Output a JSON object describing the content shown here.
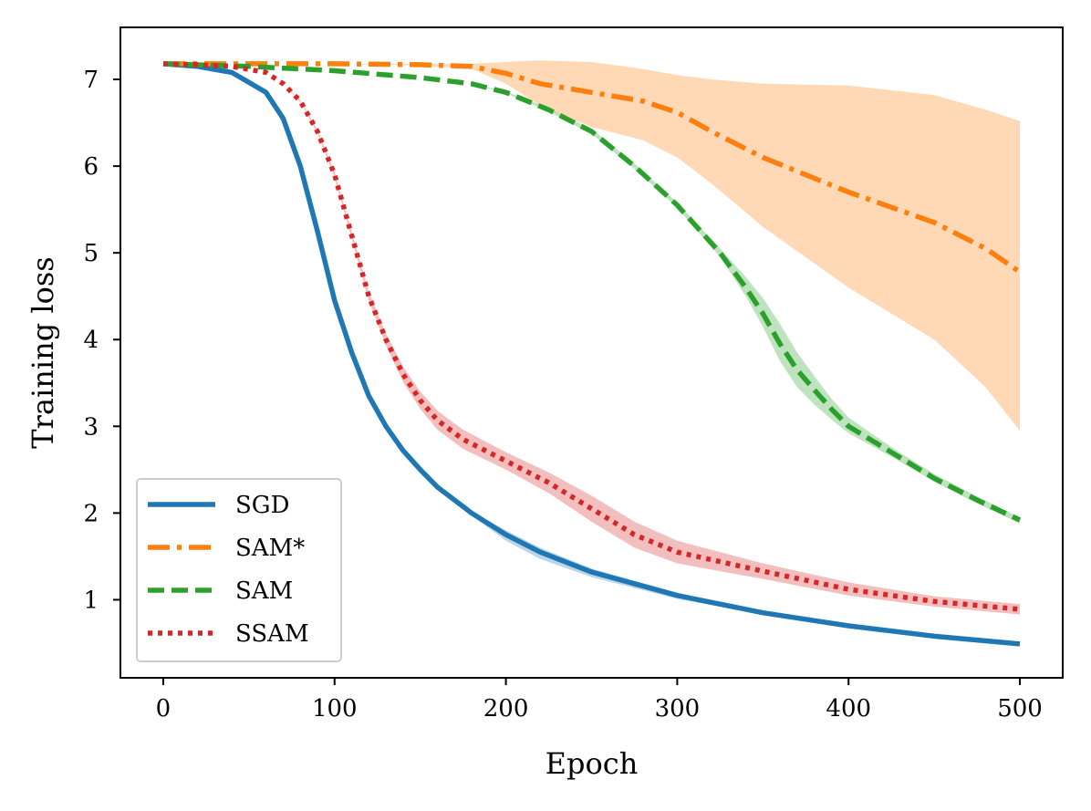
{
  "chart_data": {
    "type": "line",
    "title": "",
    "xlabel": "Epoch",
    "ylabel": "Training loss",
    "xlim": [
      -25,
      525
    ],
    "ylim": [
      0.1,
      7.6
    ],
    "xticks": [
      0,
      100,
      200,
      300,
      400,
      500
    ],
    "yticks": [
      1,
      2,
      3,
      4,
      5,
      6,
      7
    ],
    "grid": false,
    "legend_placement": "lower-left",
    "series": [
      {
        "name": "SGD",
        "color": "#1f77b4",
        "style": "solid",
        "x": [
          0,
          20,
          40,
          60,
          70,
          80,
          90,
          100,
          110,
          120,
          130,
          140,
          150,
          160,
          180,
          200,
          220,
          250,
          300,
          350,
          400,
          450,
          500
        ],
        "y": [
          7.18,
          7.15,
          7.08,
          6.85,
          6.55,
          6.0,
          5.25,
          4.45,
          3.85,
          3.35,
          3.0,
          2.72,
          2.5,
          2.3,
          2.0,
          1.75,
          1.55,
          1.32,
          1.05,
          0.85,
          0.7,
          0.58,
          0.49
        ],
        "band_upper": [
          7.18,
          7.15,
          7.08,
          6.85,
          6.55,
          6.0,
          5.25,
          4.45,
          3.85,
          3.35,
          3.0,
          2.72,
          2.5,
          2.3,
          2.02,
          1.8,
          1.6,
          1.36,
          1.08,
          0.87,
          0.71,
          0.59,
          0.5
        ],
        "band_lower": [
          7.18,
          7.15,
          7.08,
          6.85,
          6.55,
          6.0,
          5.25,
          4.45,
          3.85,
          3.35,
          3.0,
          2.72,
          2.5,
          2.3,
          1.97,
          1.68,
          1.47,
          1.26,
          1.01,
          0.83,
          0.69,
          0.57,
          0.48
        ]
      },
      {
        "name": "SAM*",
        "color": "#ff7f0e",
        "style": "dashdot",
        "x": [
          0,
          50,
          100,
          150,
          180,
          200,
          220,
          250,
          280,
          300,
          320,
          350,
          400,
          450,
          480,
          500
        ],
        "y": [
          7.18,
          7.18,
          7.18,
          7.17,
          7.15,
          7.07,
          6.95,
          6.85,
          6.75,
          6.62,
          6.4,
          6.1,
          5.7,
          5.35,
          5.05,
          4.78
        ],
        "band_upper": [
          7.18,
          7.18,
          7.18,
          7.18,
          7.18,
          7.2,
          7.22,
          7.2,
          7.12,
          7.05,
          7.0,
          6.95,
          6.93,
          6.82,
          6.65,
          6.52
        ],
        "band_lower": [
          7.18,
          7.18,
          7.18,
          7.16,
          7.12,
          6.95,
          6.7,
          6.45,
          6.3,
          6.1,
          5.8,
          5.3,
          4.6,
          4.0,
          3.45,
          2.95
        ]
      },
      {
        "name": "SAM",
        "color": "#2ca02c",
        "style": "dashed",
        "x": [
          0,
          50,
          100,
          150,
          180,
          200,
          225,
          250,
          275,
          300,
          325,
          340,
          350,
          360,
          370,
          380,
          390,
          400,
          425,
          450,
          475,
          500
        ],
        "y": [
          7.18,
          7.15,
          7.1,
          7.02,
          6.95,
          6.85,
          6.65,
          6.4,
          6.0,
          5.55,
          5.0,
          4.6,
          4.3,
          3.95,
          3.65,
          3.42,
          3.2,
          3.0,
          2.7,
          2.4,
          2.15,
          1.92
        ],
        "band_upper": [
          7.18,
          7.15,
          7.1,
          7.02,
          6.95,
          6.86,
          6.67,
          6.43,
          6.03,
          5.58,
          5.05,
          4.72,
          4.48,
          4.18,
          3.85,
          3.58,
          3.32,
          3.1,
          2.76,
          2.45,
          2.19,
          1.95
        ],
        "band_lower": [
          7.18,
          7.15,
          7.1,
          7.02,
          6.95,
          6.84,
          6.63,
          6.37,
          5.97,
          5.52,
          4.95,
          4.5,
          4.15,
          3.75,
          3.45,
          3.25,
          3.08,
          2.92,
          2.65,
          2.36,
          2.11,
          1.88
        ]
      },
      {
        "name": "SSAM",
        "color": "#d62728",
        "style": "dotted",
        "x": [
          0,
          20,
          40,
          60,
          70,
          80,
          90,
          100,
          110,
          120,
          130,
          140,
          150,
          160,
          175,
          200,
          225,
          250,
          275,
          300,
          350,
          400,
          450,
          500
        ],
        "y": [
          7.18,
          7.17,
          7.15,
          7.08,
          6.95,
          6.75,
          6.4,
          5.9,
          5.2,
          4.5,
          4.0,
          3.6,
          3.3,
          3.07,
          2.85,
          2.6,
          2.35,
          2.05,
          1.75,
          1.55,
          1.33,
          1.12,
          0.98,
          0.89
        ],
        "band_upper": [
          7.18,
          7.17,
          7.15,
          7.08,
          6.95,
          6.76,
          6.42,
          5.93,
          5.24,
          4.55,
          4.07,
          3.69,
          3.4,
          3.18,
          2.96,
          2.7,
          2.47,
          2.2,
          1.9,
          1.68,
          1.42,
          1.2,
          1.04,
          0.95
        ],
        "band_lower": [
          7.18,
          7.17,
          7.15,
          7.08,
          6.95,
          6.74,
          6.38,
          5.87,
          5.16,
          4.45,
          3.93,
          3.51,
          3.2,
          2.96,
          2.74,
          2.5,
          2.23,
          1.9,
          1.6,
          1.42,
          1.24,
          1.05,
          0.92,
          0.83
        ]
      }
    ]
  }
}
